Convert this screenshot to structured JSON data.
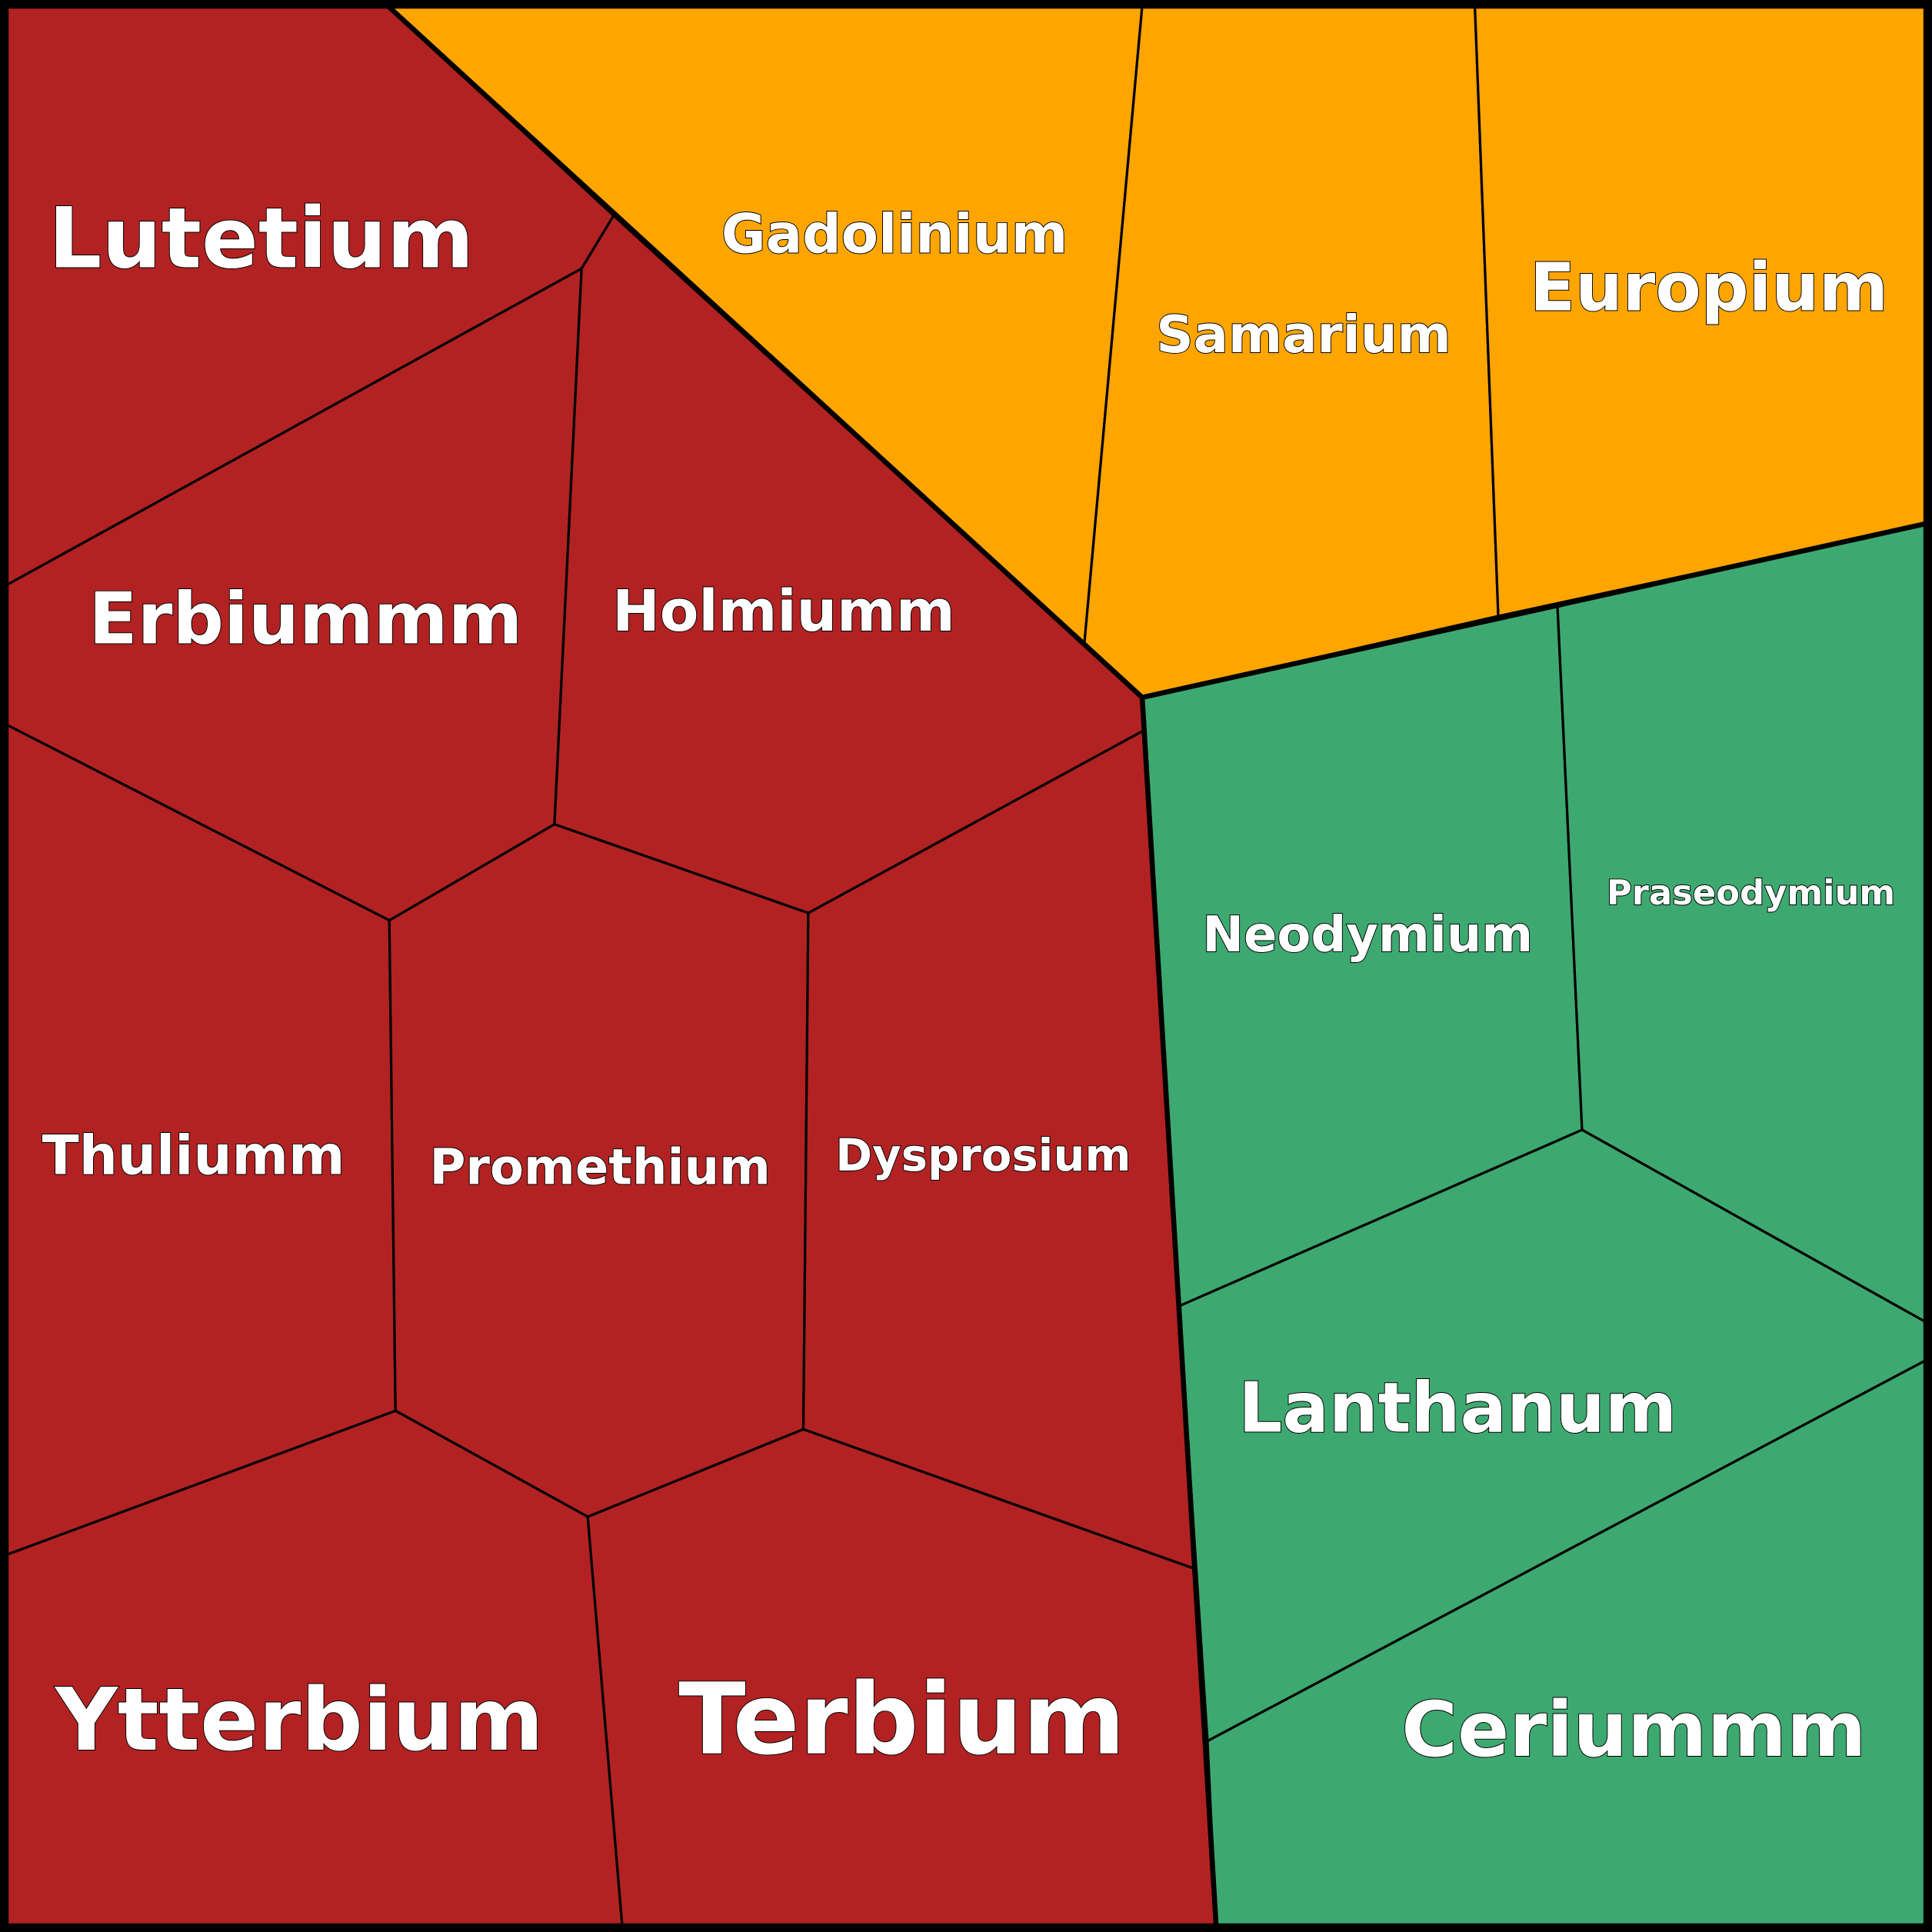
{
  "colors": {
    "red_group": "#b22222",
    "orange_group": "#ffa500",
    "green_group": "#3da970",
    "border": "#000000",
    "label": "#ffffff"
  },
  "cells": [
    {
      "name": "Lutetium",
      "group": "red_group"
    },
    {
      "name": "Erbiummm",
      "group": "red_group"
    },
    {
      "name": "Holmiumm",
      "group": "red_group"
    },
    {
      "name": "Thuliumm",
      "group": "red_group"
    },
    {
      "name": "Promethium",
      "group": "red_group"
    },
    {
      "name": "Dysprosium",
      "group": "red_group"
    },
    {
      "name": "Ytterbium",
      "group": "red_group"
    },
    {
      "name": "Terbium",
      "group": "red_group"
    },
    {
      "name": "Gadolinium",
      "group": "orange_group"
    },
    {
      "name": "Samarium",
      "group": "orange_group"
    },
    {
      "name": "Europium",
      "group": "orange_group"
    },
    {
      "name": "Neodymium",
      "group": "green_group"
    },
    {
      "name": "Praseodymium",
      "group": "green_group"
    },
    {
      "name": "Lanthanum",
      "group": "green_group"
    },
    {
      "name": "Ceriummm",
      "group": "green_group"
    }
  ]
}
